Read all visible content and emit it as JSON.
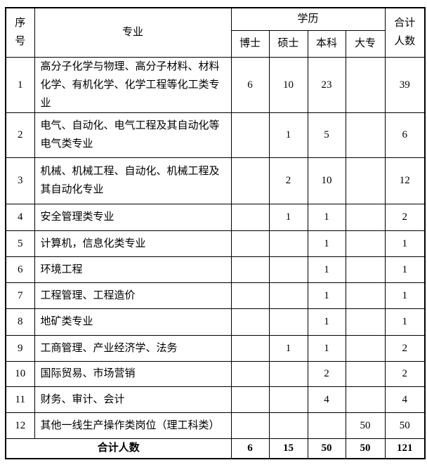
{
  "table": {
    "header": {
      "col_index": "序\n号",
      "col_major": "专业",
      "col_education": "学历",
      "edu_levels": [
        "博士",
        "硕士",
        "本科",
        "大专"
      ],
      "col_total": "合计\n人数"
    },
    "rows": [
      {
        "no": "1",
        "major": "高分子化学与物理、高分子材料、材料化学、有机化学、化学工程等化工类专业",
        "phd": "6",
        "master": "10",
        "bachelor": "23",
        "college": "",
        "total": "39"
      },
      {
        "no": "2",
        "major": "电气、自动化、电气工程及其自动化等电气类专业",
        "phd": "",
        "master": "1",
        "bachelor": "5",
        "college": "",
        "total": "6"
      },
      {
        "no": "3",
        "major": "机械、机械工程、自动化、机械工程及其自动化专业",
        "phd": "",
        "master": "2",
        "bachelor": "10",
        "college": "",
        "total": "12"
      },
      {
        "no": "4",
        "major": "安全管理类专业",
        "phd": "",
        "master": "1",
        "bachelor": "1",
        "college": "",
        "total": "2"
      },
      {
        "no": "5",
        "major": "计算机，信息化类专业",
        "phd": "",
        "master": "",
        "bachelor": "1",
        "college": "",
        "total": "1"
      },
      {
        "no": "6",
        "major": "环境工程",
        "phd": "",
        "master": "",
        "bachelor": "1",
        "college": "",
        "total": "1"
      },
      {
        "no": "7",
        "major": "工程管理、工程造价",
        "phd": "",
        "master": "",
        "bachelor": "1",
        "college": "",
        "total": "1"
      },
      {
        "no": "8",
        "major": "地矿类专业",
        "phd": "",
        "master": "",
        "bachelor": "1",
        "college": "",
        "total": "1"
      },
      {
        "no": "9",
        "major": "工商管理、产业经济学、法务",
        "phd": "",
        "master": "1",
        "bachelor": "1",
        "college": "",
        "total": "2"
      },
      {
        "no": "10",
        "major": "国际贸易、市场营销",
        "phd": "",
        "master": "",
        "bachelor": "2",
        "college": "",
        "total": "2"
      },
      {
        "no": "11",
        "major": "财务、审计、会计",
        "phd": "",
        "master": "",
        "bachelor": "4",
        "college": "",
        "total": "4"
      },
      {
        "no": "12",
        "major": "其他一线生产操作类岗位（理工科类）",
        "phd": "",
        "master": "",
        "bachelor": "",
        "college": "50",
        "total": "50"
      }
    ],
    "footer": {
      "label": "合计人数",
      "phd": "6",
      "master": "15",
      "bachelor": "50",
      "college": "50",
      "total": "121"
    }
  }
}
